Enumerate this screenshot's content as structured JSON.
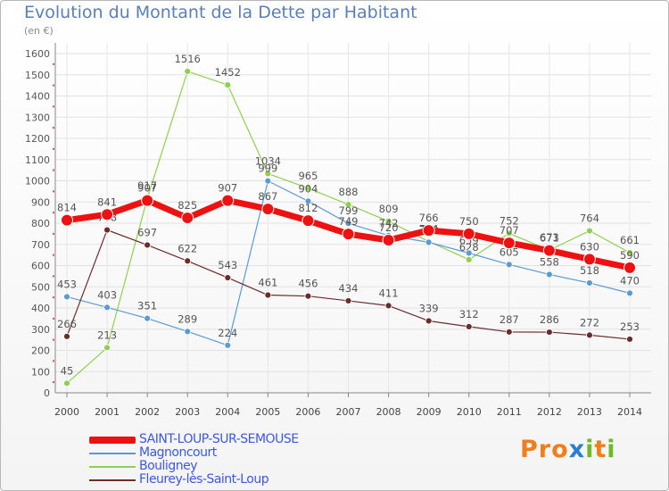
{
  "title": "Evolution du Montant de la Dette par Habitant",
  "unit_label": "(en €)",
  "logo": {
    "text": "Proxiti",
    "letters": [
      {
        "ch": "P",
        "color": "#f07e1b"
      },
      {
        "ch": "r",
        "color": "#f07e1b"
      },
      {
        "ch": "o",
        "color": "#f07e1b"
      },
      {
        "ch": "x",
        "color": "#2a7fd4"
      },
      {
        "ch": "i",
        "color": "#6fba2c"
      },
      {
        "ch": "t",
        "color": "#f07e1b"
      },
      {
        "ch": "i",
        "color": "#6fba2c"
      }
    ]
  },
  "chart_data": {
    "type": "line",
    "title": "Evolution du Montant de la Dette par Habitant",
    "xlabel": "",
    "ylabel": "(en €)",
    "x": [
      "2000",
      "2001",
      "2002",
      "2003",
      "2004",
      "2005",
      "2006",
      "2007",
      "2008",
      "2009",
      "2010",
      "2011",
      "2012",
      "2013",
      "2014"
    ],
    "ylim": [
      0,
      1600
    ],
    "yticks": [
      0,
      100,
      200,
      300,
      400,
      500,
      600,
      700,
      800,
      900,
      1000,
      1100,
      1200,
      1300,
      1400,
      1500,
      1600
    ],
    "grid": true,
    "legend_position": "bottom-left",
    "series": [
      {
        "name": "Bouligney",
        "color": "#8fd14f",
        "marker": "#8fd14f",
        "width": 1.2,
        "values": [
          45,
          213,
          917,
          1516,
          1452,
          1034,
          965,
          888,
          809,
          714,
          628,
          752,
          673,
          764,
          661
        ]
      },
      {
        "name": "Magnoncourt",
        "color": "#5b9bd5",
        "marker": "#5b9bd5",
        "width": 1.2,
        "values": [
          453,
          403,
          351,
          289,
          224,
          999,
          904,
          799,
          742,
          710,
          659,
          605,
          558,
          518,
          470
        ]
      },
      {
        "name": "Fleurey-lès-Saint-Loup",
        "color": "#6b2c2c",
        "marker": "#6b2c2c",
        "width": 1.2,
        "values": [
          266,
          768,
          697,
          622,
          543,
          461,
          456,
          434,
          411,
          339,
          312,
          287,
          286,
          272,
          253
        ]
      },
      {
        "name": "SAINT-LOUP-SUR-SEMOUSE",
        "color": "#ee1111",
        "marker": "#ee1111",
        "width": 7,
        "values": [
          814,
          841,
          907,
          825,
          907,
          867,
          812,
          749,
          720,
          766,
          750,
          707,
          671,
          630,
          590
        ]
      }
    ],
    "legend_order": [
      "SAINT-LOUP-SUR-SEMOUSE",
      "Magnoncourt",
      "Bouligney",
      "Fleurey-lès-Saint-Loup"
    ]
  }
}
